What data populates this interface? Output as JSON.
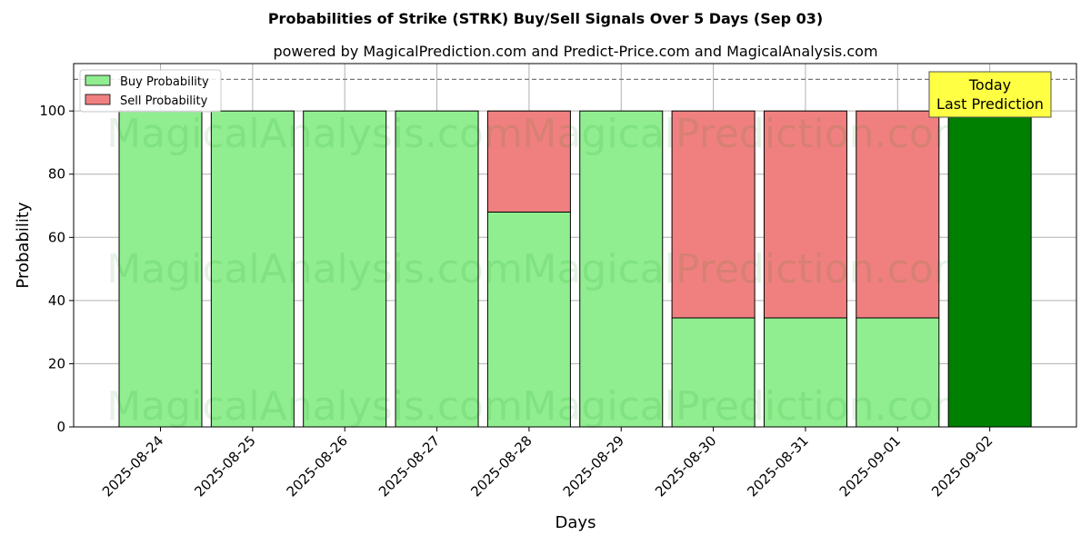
{
  "chart_data": {
    "type": "bar",
    "title": "Probabilities of Strike (STRK) Buy/Sell Signals Over 5 Days (Sep 03)",
    "subtitle": "powered by MagicalPrediction.com and Predict-Price.com and MagicalAnalysis.com",
    "xlabel": "Days",
    "ylabel": "Probability",
    "categories": [
      "2025-08-24",
      "2025-08-25",
      "2025-08-26",
      "2025-08-27",
      "2025-08-28",
      "2025-08-29",
      "2025-08-30",
      "2025-08-31",
      "2025-09-01",
      "2025-09-02"
    ],
    "series": [
      {
        "name": "Buy Probability",
        "values": [
          100,
          100,
          100,
          100,
          68,
          100,
          34.5,
          34.5,
          34.5,
          100
        ],
        "color": "#90EE90"
      },
      {
        "name": "Sell Probability",
        "values": [
          0,
          0,
          0,
          0,
          32,
          0,
          65.5,
          65.5,
          65.5,
          0
        ],
        "color": "#F08080"
      }
    ],
    "highlight": {
      "index": 9,
      "color": "#008000"
    },
    "ylim": [
      0,
      115
    ],
    "yticks": [
      0,
      20,
      40,
      60,
      80,
      100
    ],
    "reference_line": 110,
    "grid": true,
    "legend_position": "top-left",
    "annotation": {
      "lines": [
        "Today",
        "Last Prediction"
      ],
      "background": "#FFFF44"
    },
    "watermarks": [
      "MagicalAnalysis.com",
      "MagicalPrediction.com"
    ]
  }
}
